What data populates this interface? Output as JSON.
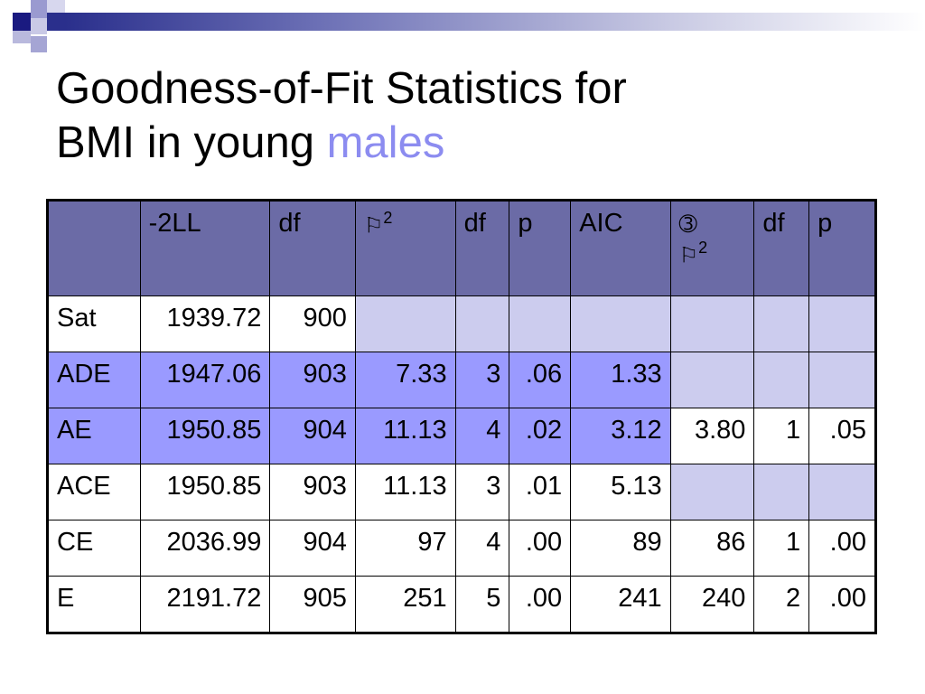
{
  "colors": {
    "header_bg": "#6b6ba6",
    "row_blue": "#9a9aff",
    "cell_light": "#ccccee",
    "title_accent": "#8c8cf0",
    "decor_dark": "#1a1a80"
  },
  "title": {
    "line1": "Goodness-of-Fit Statistics for",
    "line2_prefix": "BMI in young ",
    "line2_accent": "males"
  },
  "table": {
    "headers": [
      "",
      "-2LL",
      "df",
      "",
      "df",
      "p",
      "AIC",
      "",
      "df",
      "p"
    ],
    "header_symbols": {
      "chi_glyph": "⚐",
      "chi_exp": "2",
      "delta_glyph": "➂",
      "delta_chi_glyph": "⚐",
      "delta_chi_exp": "2"
    },
    "rows": [
      {
        "model": "Sat",
        "ll": "1939.72",
        "df": "900",
        "chi2": "",
        "df2": "",
        "p": "",
        "aic": "",
        "dchi2": "",
        "ddf": "",
        "dp": ""
      },
      {
        "model": "ADE",
        "ll": "1947.06",
        "df": "903",
        "chi2": "7.33",
        "df2": "3",
        "p": ".06",
        "aic": "1.33",
        "dchi2": "",
        "ddf": "",
        "dp": ""
      },
      {
        "model": "AE",
        "ll": "1950.85",
        "df": "904",
        "chi2": "11.13",
        "df2": "4",
        "p": ".02",
        "aic": "3.12",
        "dchi2": "3.80",
        "ddf": "1",
        "dp": ".05"
      },
      {
        "model": "ACE",
        "ll": "1950.85",
        "df": "903",
        "chi2": "11.13",
        "df2": "3",
        "p": ".01",
        "aic": "5.13",
        "dchi2": "",
        "ddf": "",
        "dp": ""
      },
      {
        "model": "CE",
        "ll": "2036.99",
        "df": "904",
        "chi2": "97",
        "df2": "4",
        "p": ".00",
        "aic": "89",
        "dchi2": "86",
        "ddf": "1",
        "dp": ".00"
      },
      {
        "model": "E",
        "ll": "2191.72",
        "df": "905",
        "chi2": "251",
        "df2": "5",
        "p": ".00",
        "aic": "241",
        "dchi2": "240",
        "ddf": "2",
        "dp": ".00"
      }
    ]
  }
}
